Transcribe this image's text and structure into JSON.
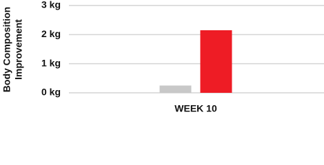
{
  "chart_data": {
    "type": "bar",
    "ylabel": [
      "Body Composition",
      "Improvement"
    ],
    "categories": [
      "WEEK 10"
    ],
    "series": [
      {
        "color": "#c8c8c8",
        "values": [
          0.25
        ]
      },
      {
        "color": "#ee1c25",
        "values": [
          2.15
        ]
      }
    ],
    "ylim": [
      0,
      3
    ],
    "yticks": [
      {
        "value": 0,
        "label": "0 kg"
      },
      {
        "value": 1,
        "label": "1 kg"
      },
      {
        "value": 2,
        "label": "2 kg"
      },
      {
        "value": 3,
        "label": "3 kg"
      }
    ],
    "grid": true
  }
}
